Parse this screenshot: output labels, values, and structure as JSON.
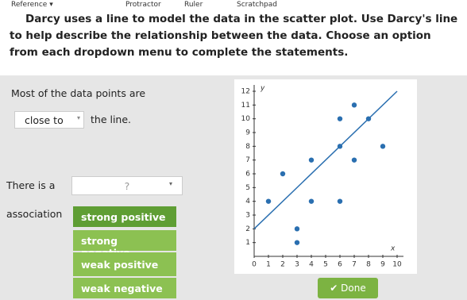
{
  "toolbar": [
    "Reference",
    "Protractor",
    "Ruler",
    "Scratchpad"
  ],
  "question": "Darcy uses a line to model the data in the scatter plot. Use Darcy's line to help describe the relationship between the data. Choose an option from each dropdown menu to complete the statements.",
  "statement1": {
    "before": "Most of the data points are",
    "selected": "close to",
    "after": "the line."
  },
  "statement2": {
    "before": "There is a",
    "selected": "?",
    "after": "association"
  },
  "options": [
    "strong positive",
    "strong negative",
    "weak positive",
    "weak negative"
  ],
  "done": "Done",
  "chart_data": {
    "type": "scatter",
    "x_label": "x",
    "y_label": "y",
    "x": [
      3,
      3,
      1,
      4,
      6,
      2,
      4,
      7,
      6,
      9,
      6,
      8,
      7
    ],
    "values": [
      1,
      2,
      4,
      4,
      4,
      6,
      7,
      7,
      8,
      8,
      10,
      10,
      11
    ],
    "color": "#2a6fb0",
    "trend_line": {
      "x": [
        0,
        10
      ],
      "values": [
        2,
        12
      ],
      "color": "#2a6fb0"
    },
    "xlim": [
      0,
      10
    ],
    "ylim": [
      0,
      12
    ],
    "xticks": [
      0,
      1,
      2,
      3,
      4,
      5,
      6,
      7,
      8,
      9,
      10
    ],
    "yticks": [
      1,
      2,
      3,
      4,
      5,
      6,
      7,
      8,
      9,
      10,
      11,
      12
    ]
  }
}
